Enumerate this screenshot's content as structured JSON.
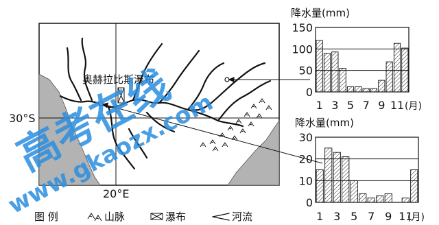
{
  "map": {
    "waterfall_label": "奥赫拉比斯瀑布",
    "lat_label": "30°S",
    "lon_label": "20°E"
  },
  "legend": {
    "title": "图 例",
    "mountain": "山脉",
    "waterfall": "瀑布",
    "river": "河流"
  },
  "watermark": {
    "line1": "高考在线",
    "line2": "www.gkaozx.com"
  },
  "colors": {
    "land": "#ffffff",
    "sea": "#b3b3b3",
    "ink": "#111111",
    "watermark": "#2b8fe0"
  },
  "chart_data": [
    {
      "type": "bar",
      "ylabel": "降水量(mm)",
      "xlabel": "(月)",
      "ylim": [
        0,
        150
      ],
      "yticks": [
        "0",
        "50",
        "100",
        "150"
      ],
      "xtick_labels": [
        "1",
        "3",
        "5",
        "7",
        "9",
        "11"
      ],
      "categories": [
        "1",
        "2",
        "3",
        "4",
        "5",
        "6",
        "7",
        "8",
        "9",
        "10",
        "11",
        "12"
      ],
      "values": [
        120,
        90,
        93,
        55,
        12,
        12,
        8,
        8,
        27,
        70,
        113,
        102
      ],
      "grid": "horizontal lines at 50, 100"
    },
    {
      "type": "bar",
      "ylabel": "降水量(mm)",
      "xlabel": "(月)",
      "ylim": [
        0,
        30
      ],
      "yticks": [
        "0",
        "10",
        "20",
        "30"
      ],
      "xtick_labels": [
        "1",
        "3",
        "5",
        "7",
        "9",
        "11"
      ],
      "categories": [
        "1",
        "2",
        "3",
        "4",
        "5",
        "6",
        "7",
        "8",
        "9",
        "10",
        "11",
        "12"
      ],
      "values": [
        15,
        25,
        23,
        21,
        10,
        4,
        2,
        3,
        4,
        0,
        2,
        15
      ],
      "grid": "horizontal lines at 10, 20"
    }
  ]
}
